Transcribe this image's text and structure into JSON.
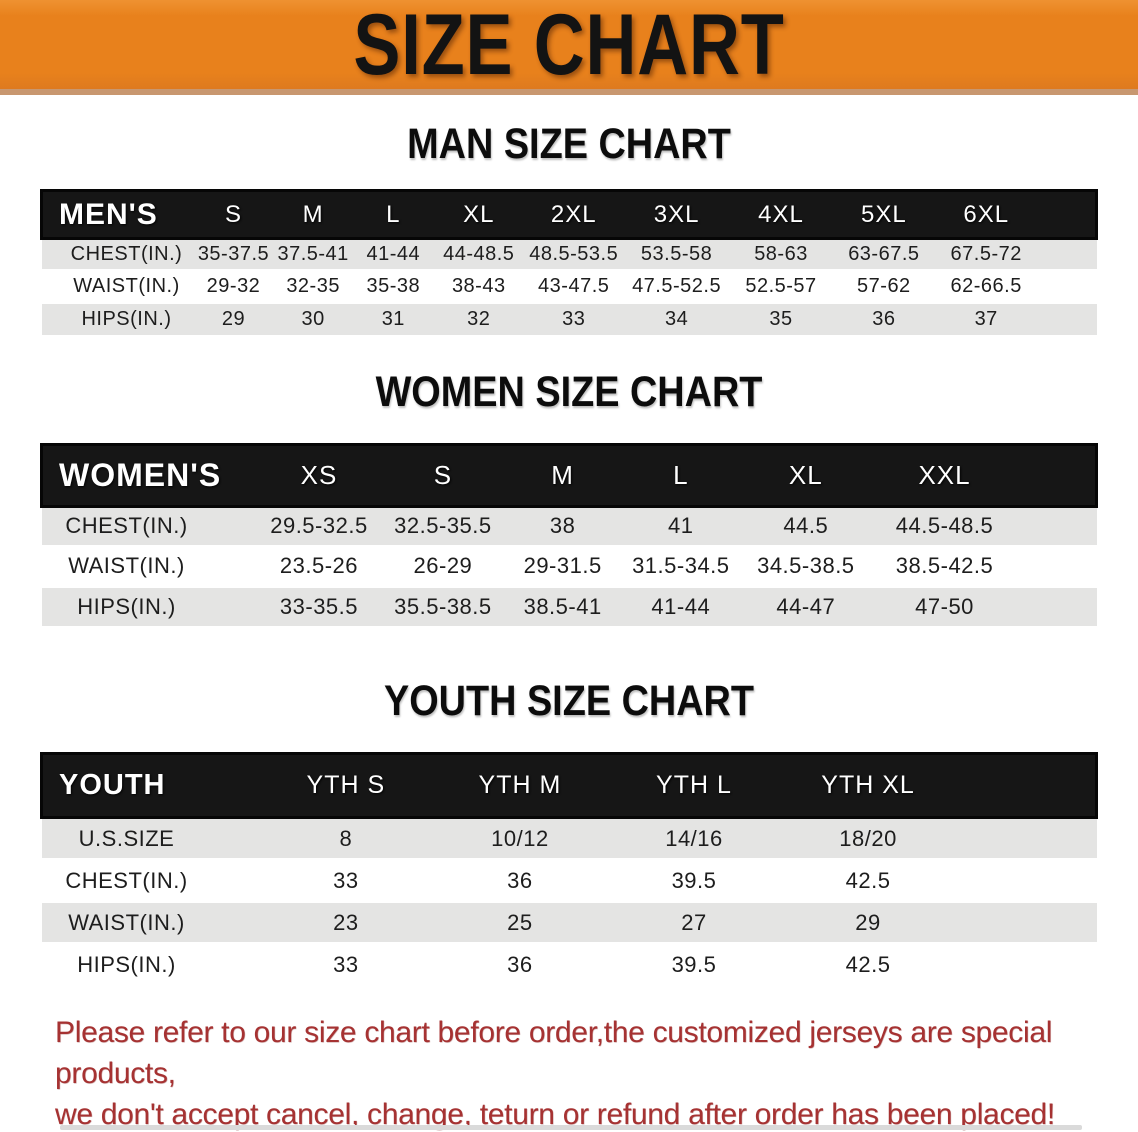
{
  "banner": {
    "title": "SIZE CHART"
  },
  "sections": [
    {
      "heading": "MAN SIZE CHART",
      "table": {
        "label": "MEN'S",
        "sizes": [
          "S",
          "M",
          "L",
          "XL",
          "2XL",
          "3XL",
          "4XL",
          "5XL",
          "6XL"
        ],
        "rows": [
          {
            "label": "CHEST(IN.)",
            "values": [
              "35-37.5",
              "37.5-41",
              "41-44",
              "44-48.5",
              "48.5-53.5",
              "53.5-58",
              "58-63",
              "63-67.5",
              "67.5-72"
            ]
          },
          {
            "label": "WAIST(IN.)",
            "values": [
              "29-32",
              "32-35",
              "35-38",
              "38-43",
              "43-47.5",
              "47.5-52.5",
              "52.5-57",
              "57-62",
              "62-66.5"
            ]
          },
          {
            "label": "HIPS(IN.)",
            "values": [
              "29",
              "30",
              "31",
              "32",
              "33",
              "34",
              "35",
              "36",
              "37"
            ]
          }
        ]
      }
    },
    {
      "heading": "WOMEN SIZE CHART",
      "table": {
        "label": "WOMEN'S",
        "sizes": [
          "XS",
          "S",
          "M",
          "L",
          "XL",
          "XXL"
        ],
        "rows": [
          {
            "label": "CHEST(IN.)",
            "values": [
              "29.5-32.5",
              "32.5-35.5",
              "38",
              "41",
              "44.5",
              "44.5-48.5"
            ]
          },
          {
            "label": "WAIST(IN.)",
            "values": [
              "23.5-26",
              "26-29",
              "29-31.5",
              "31.5-34.5",
              "34.5-38.5",
              "38.5-42.5"
            ]
          },
          {
            "label": "HIPS(IN.)",
            "values": [
              "33-35.5",
              "35.5-38.5",
              "38.5-41",
              "41-44",
              "44-47",
              "47-50"
            ]
          }
        ]
      }
    },
    {
      "heading": "YOUTH SIZE CHART",
      "table": {
        "label": "YOUTH",
        "sizes": [
          "YTH S",
          "YTH M",
          "YTH L",
          "YTH XL"
        ],
        "rows": [
          {
            "label": "U.S.SIZE",
            "values": [
              "8",
              "10/12",
              "14/16",
              "18/20"
            ]
          },
          {
            "label": "CHEST(IN.)",
            "values": [
              "33",
              "36",
              "39.5",
              "42.5"
            ]
          },
          {
            "label": "WAIST(IN.)",
            "values": [
              "23",
              "25",
              "27",
              "29"
            ]
          },
          {
            "label": "HIPS(IN.)",
            "values": [
              "33",
              "36",
              "39.5",
              "42.5"
            ]
          }
        ]
      }
    }
  ],
  "footer": {
    "line1": "Please refer to our size chart before order,the customized jerseys are special products,",
    "line2": "we don't accept cancel, change, teturn or refund after order has been placed!"
  },
  "colors": {
    "banner_orange": "#E8811C",
    "banner_edge": "#C89770",
    "table_header_black": "#161616",
    "stripe_gray": "#E4E4E3",
    "note_red": "#A63232"
  }
}
